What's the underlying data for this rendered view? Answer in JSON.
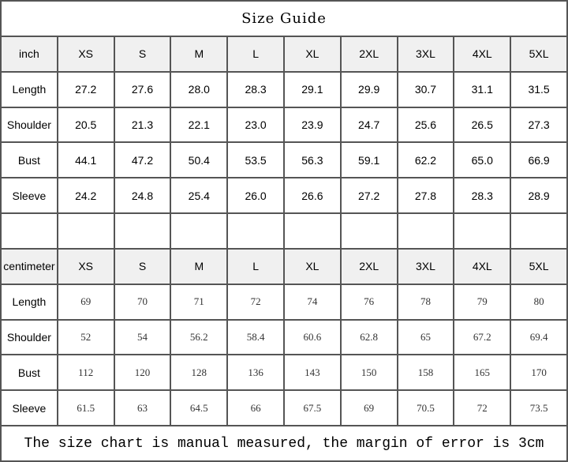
{
  "title": "Size Guide",
  "sizes": [
    "XS",
    "S",
    "M",
    "L",
    "XL",
    "2XL",
    "3XL",
    "4XL",
    "5XL"
  ],
  "inch": {
    "unit_label": "inch",
    "rows": [
      {
        "label": "Length",
        "values": [
          "27.2",
          "27.6",
          "28.0",
          "28.3",
          "29.1",
          "29.9",
          "30.7",
          "31.1",
          "31.5"
        ]
      },
      {
        "label": "Shoulder",
        "values": [
          "20.5",
          "21.3",
          "22.1",
          "23.0",
          "23.9",
          "24.7",
          "25.6",
          "26.5",
          "27.3"
        ]
      },
      {
        "label": "Bust",
        "values": [
          "44.1",
          "47.2",
          "50.4",
          "53.5",
          "56.3",
          "59.1",
          "62.2",
          "65.0",
          "66.9"
        ]
      },
      {
        "label": "Sleeve",
        "values": [
          "24.2",
          "24.8",
          "25.4",
          "26.0",
          "26.6",
          "27.2",
          "27.8",
          "28.3",
          "28.9"
        ]
      }
    ]
  },
  "centimeter": {
    "unit_label": "centimeter",
    "rows": [
      {
        "label": "Length",
        "values": [
          "69",
          "70",
          "71",
          "72",
          "74",
          "76",
          "78",
          "79",
          "80"
        ]
      },
      {
        "label": "Shoulder",
        "values": [
          "52",
          "54",
          "56.2",
          "58.4",
          "60.6",
          "62.8",
          "65",
          "67.2",
          "69.4"
        ]
      },
      {
        "label": "Bust",
        "values": [
          "112",
          "120",
          "128",
          "136",
          "143",
          "150",
          "158",
          "165",
          "170"
        ]
      },
      {
        "label": "Sleeve",
        "values": [
          "61.5",
          "63",
          "64.5",
          "66",
          "67.5",
          "69",
          "70.5",
          "72",
          "73.5"
        ]
      }
    ]
  },
  "footer": "The size chart is manual measured, the margin of error is 3cm"
}
